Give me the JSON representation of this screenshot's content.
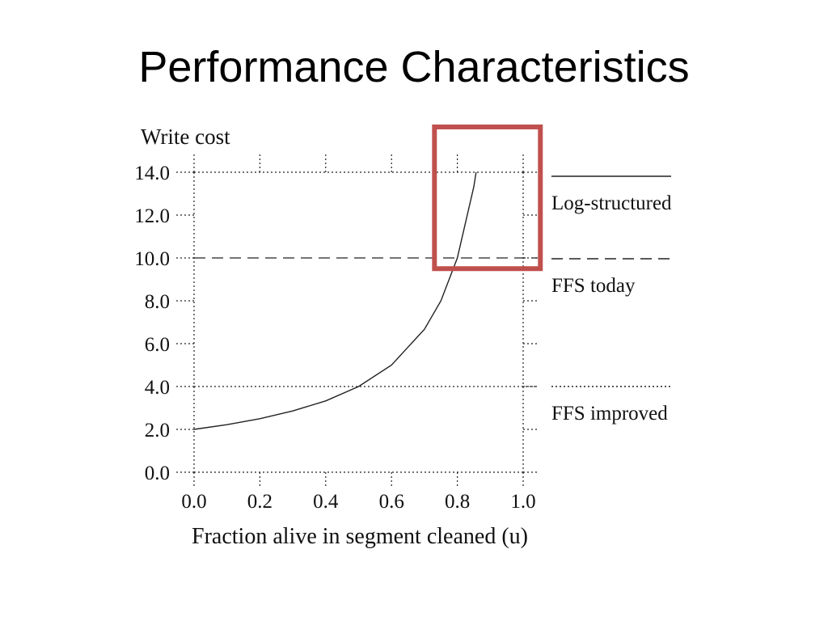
{
  "slide": {
    "title": "Performance Characteristics"
  },
  "chart_data": {
    "type": "line",
    "ylabel": "Write cost",
    "xlabel": "Fraction alive in segment cleaned (u)",
    "xlim": [
      0.0,
      1.0
    ],
    "ylim": [
      0.0,
      14.0
    ],
    "x_ticks": [
      "0.0",
      "0.2",
      "0.4",
      "0.6",
      "0.8",
      "1.0"
    ],
    "y_ticks": [
      "0.0",
      "2.0",
      "4.0",
      "6.0",
      "8.0",
      "10.0",
      "12.0",
      "14.0"
    ],
    "series": [
      {
        "name": "Log-structured",
        "style": "solid",
        "x": [
          0.0,
          0.1,
          0.2,
          0.3,
          0.4,
          0.5,
          0.6,
          0.7,
          0.75,
          0.8,
          0.85,
          0.857
        ],
        "y": [
          2.0,
          2.22,
          2.5,
          2.86,
          3.33,
          4.0,
          5.0,
          6.67,
          8.0,
          10.0,
          13.33,
          14.0
        ]
      },
      {
        "name": "FFS today",
        "style": "dashed",
        "constant": 10.0
      },
      {
        "name": "FFS improved",
        "style": "dotted",
        "constant": 4.0
      }
    ],
    "highlight": {
      "x_range": [
        0.76,
        1.04
      ],
      "y_range": [
        9.5,
        16.0
      ],
      "color": "#c0504d"
    },
    "legend_placement": "right"
  }
}
